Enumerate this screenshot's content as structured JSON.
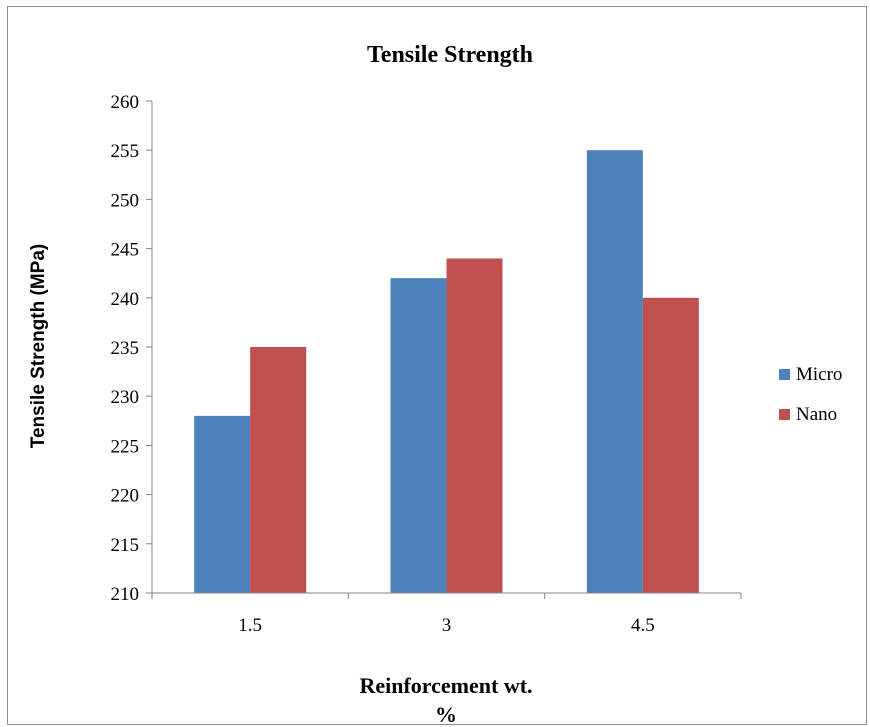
{
  "chart_data": {
    "type": "bar",
    "title": "Tensile Strength",
    "xlabel_line1": "Reinforcement wt.",
    "xlabel_line2": "%",
    "ylabel": "Tensile Strength (MPa)",
    "categories": [
      "1.5",
      "3",
      "4.5"
    ],
    "ylim": [
      210,
      260
    ],
    "ytick_step": 5,
    "grid": false,
    "legend_position": "right",
    "series": [
      {
        "name": "Micro",
        "values": [
          228,
          242,
          255
        ],
        "color": "#4f81bd"
      },
      {
        "name": "Nano",
        "values": [
          235,
          244,
          240
        ],
        "color": "#c0504d"
      }
    ]
  }
}
